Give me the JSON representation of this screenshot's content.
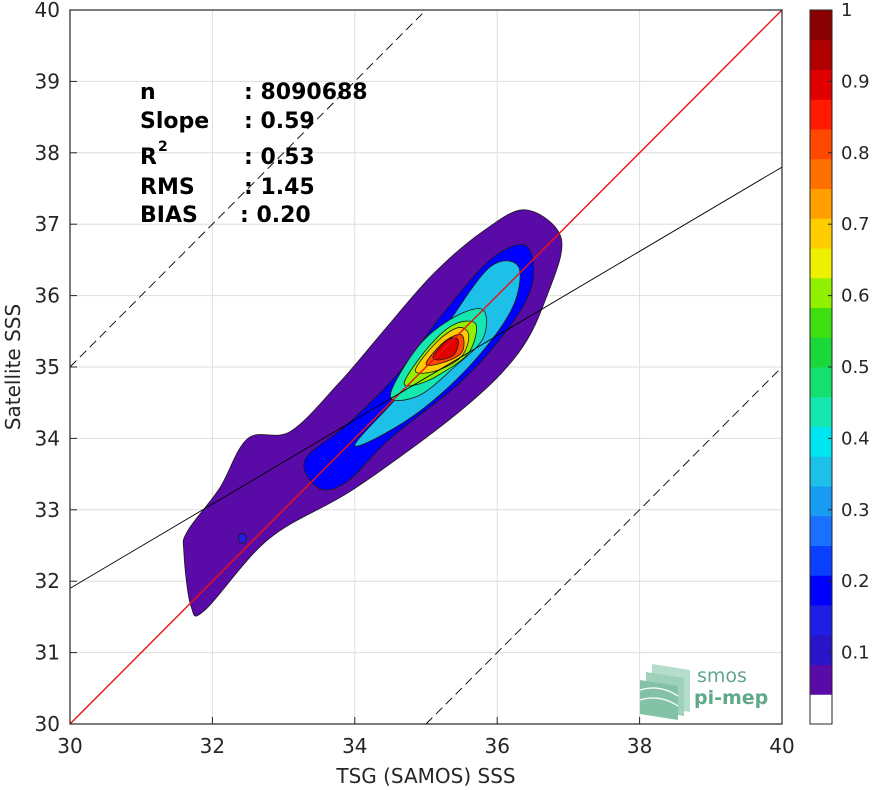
{
  "chart_data": {
    "type": "heatmap",
    "subtype": "density-contour",
    "xlabel": "TSG (SAMOS) SSS",
    "ylabel": "Satellite SSS",
    "xlim": [
      30,
      40
    ],
    "ylim": [
      30,
      40
    ],
    "x_ticks": [
      "30",
      "32",
      "34",
      "36",
      "38",
      "40"
    ],
    "y_ticks": [
      "30",
      "31",
      "32",
      "33",
      "34",
      "35",
      "36",
      "37",
      "38",
      "39",
      "40"
    ],
    "grid": true,
    "stats": {
      "n_label": "n",
      "n_value": ": 8090688",
      "slope_label": "Slope",
      "slope_value": ": 0.59",
      "r2_label": "R",
      "r2_sup": "2",
      "r2_value": ": 0.53",
      "rms_label": "RMS",
      "rms_value": ": 1.45",
      "bias_label": "BIAS",
      "bias_value": ": 0.20"
    },
    "lines": {
      "identity": {
        "slope": 1,
        "intercept": 0,
        "color": "#ee1111",
        "style": "solid"
      },
      "regression": {
        "slope": 0.59,
        "intercept": 14.2,
        "color": "#000000",
        "style": "solid"
      },
      "upper_bound": {
        "slope": 1,
        "intercept": 5,
        "color": "#000000",
        "style": "dashed"
      },
      "lower_bound": {
        "slope": 1,
        "intercept": -5,
        "color": "#000000",
        "style": "dashed"
      }
    },
    "density": {
      "ridge_start": [
        31.95,
        31.9
      ],
      "ridge_end": [
        36.45,
        36.9
      ],
      "peak": [
        35.3,
        35.3
      ],
      "levels": [
        {
          "value": 0.05,
          "points": [
            [
              31.7,
              31.65
            ],
            [
              31.6,
              32.4
            ],
            [
              31.65,
              32.7
            ],
            [
              32.1,
              33.3
            ],
            [
              32.5,
              34.0
            ],
            [
              33.1,
              34.1
            ],
            [
              33.8,
              34.8
            ],
            [
              34.4,
              35.5
            ],
            [
              35.1,
              36.3
            ],
            [
              35.8,
              36.9
            ],
            [
              36.4,
              37.2
            ],
            [
              36.9,
              36.8
            ],
            [
              36.7,
              36.0
            ],
            [
              36.3,
              35.2
            ],
            [
              35.5,
              34.4
            ],
            [
              34.0,
              33.3
            ],
            [
              32.8,
              32.6
            ],
            [
              31.9,
              31.6
            ]
          ]
        },
        {
          "value": 0.2,
          "points": [
            [
              33.5,
              33.3
            ],
            [
              33.3,
              33.7
            ],
            [
              33.9,
              34.2
            ],
            [
              34.6,
              34.9
            ],
            [
              35.2,
              35.7
            ],
            [
              35.9,
              36.5
            ],
            [
              36.4,
              36.7
            ],
            [
              36.5,
              36.2
            ],
            [
              36.2,
              35.6
            ],
            [
              35.5,
              34.8
            ],
            [
              34.5,
              34.0
            ],
            [
              33.9,
              33.4
            ]
          ]
        },
        {
          "value": 0.35,
          "points": [
            [
              34.0,
              33.9
            ],
            [
              34.7,
              34.7
            ],
            [
              35.3,
              35.6
            ],
            [
              35.9,
              36.4
            ],
            [
              36.3,
              36.4
            ],
            [
              36.2,
              35.8
            ],
            [
              35.6,
              35.0
            ],
            [
              34.8,
              34.3
            ]
          ]
        },
        {
          "value": 0.45,
          "points": [
            [
              34.5,
              34.6
            ],
            [
              34.9,
              35.3
            ],
            [
              35.4,
              35.7
            ],
            [
              35.8,
              35.8
            ],
            [
              35.8,
              35.4
            ],
            [
              35.4,
              35.0
            ],
            [
              34.9,
              34.6
            ]
          ]
        },
        {
          "value": 0.6,
          "points": [
            [
              34.7,
              34.8
            ],
            [
              35.05,
              35.3
            ],
            [
              35.4,
              35.6
            ],
            [
              35.7,
              35.6
            ],
            [
              35.6,
              35.2
            ],
            [
              35.2,
              34.9
            ],
            [
              34.85,
              34.75
            ]
          ]
        },
        {
          "value": 0.7,
          "points": [
            [
              34.85,
              34.95
            ],
            [
              35.15,
              35.35
            ],
            [
              35.45,
              35.55
            ],
            [
              35.6,
              35.45
            ],
            [
              35.5,
              35.15
            ],
            [
              35.15,
              34.95
            ]
          ]
        },
        {
          "value": 0.8,
          "points": [
            [
              35.0,
              35.05
            ],
            [
              35.25,
              35.35
            ],
            [
              35.5,
              35.45
            ],
            [
              35.5,
              35.2
            ],
            [
              35.2,
              35.05
            ]
          ]
        },
        {
          "value": 0.9,
          "points": [
            [
              35.1,
              35.15
            ],
            [
              35.3,
              35.38
            ],
            [
              35.45,
              35.38
            ],
            [
              35.4,
              35.18
            ],
            [
              35.2,
              35.1
            ]
          ]
        }
      ],
      "blip": [
        32.42,
        32.6
      ]
    },
    "colorbar": {
      "ticks": [
        "0.1",
        "0.2",
        "0.3",
        "0.4",
        "0.5",
        "0.6",
        "0.7",
        "0.8",
        "0.9",
        "1"
      ],
      "range": [
        0,
        1
      ],
      "colors": [
        "#ffffff",
        "#5a0aa6",
        "#2a14c8",
        "#1e1ee6",
        "#0000ff",
        "#0a40ff",
        "#1a70ff",
        "#189cf2",
        "#1cc0e8",
        "#00e6f0",
        "#14e8b0",
        "#14e070",
        "#1ad83a",
        "#40e010",
        "#90f000",
        "#eef000",
        "#ffcc00",
        "#ffa000",
        "#ff7000",
        "#ff4800",
        "#ff1a00",
        "#e00000",
        "#b00000",
        "#8a0000"
      ]
    }
  },
  "logo": {
    "top": "smos",
    "bottom": "pi-mep",
    "color": "#5fa88a"
  }
}
